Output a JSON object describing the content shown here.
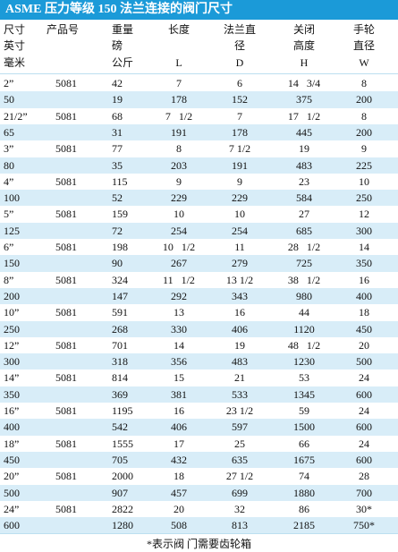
{
  "title": "ASME 压力等级 150 法兰连接的阀门尺寸",
  "header": [
    [
      "尺寸",
      "英寸",
      "毫米"
    ],
    [
      "产品号"
    ],
    [
      "重量",
      "磅",
      "公斤"
    ],
    [
      "长度",
      "L"
    ],
    [
      "法兰直",
      "径",
      "D"
    ],
    [
      "关闭",
      "高度",
      "H"
    ],
    [
      "手轮",
      "直径",
      "W"
    ]
  ],
  "rows": [
    [
      "2”",
      "5081",
      "42",
      "7",
      "6",
      "14   3/4",
      "8"
    ],
    [
      "50",
      null,
      "19",
      "178",
      "152",
      "375",
      "200"
    ],
    [
      "21/2”",
      "5081",
      "68",
      "7   1/2",
      "7",
      "17   1/2",
      "8"
    ],
    [
      "65",
      null,
      "31",
      "191",
      "178",
      "445",
      "200"
    ],
    [
      "3”",
      "5081",
      "77",
      "8",
      "7 1/2",
      "19",
      "9"
    ],
    [
      "80",
      null,
      "35",
      "203",
      "191",
      "483",
      "225"
    ],
    [
      "4”",
      "5081",
      "115",
      "9",
      "9",
      "23",
      "10"
    ],
    [
      "100",
      null,
      "52",
      "229",
      "229",
      "584",
      "250"
    ],
    [
      "5”",
      "5081",
      "159",
      "10",
      "10",
      "27",
      "12"
    ],
    [
      "125",
      null,
      "72",
      "254",
      "254",
      "685",
      "300"
    ],
    [
      "6”",
      "5081",
      "198",
      "10   1/2",
      "11",
      "28   1/2",
      "14"
    ],
    [
      "150",
      null,
      "90",
      "267",
      "279",
      "725",
      "350"
    ],
    [
      "8”",
      "5081",
      "324",
      "11   1/2",
      "13 1/2",
      "38   1/2",
      "16"
    ],
    [
      "200",
      null,
      "147",
      "292",
      "343",
      "980",
      "400"
    ],
    [
      "10”",
      "5081",
      "591",
      "13",
      "16",
      "44",
      "18"
    ],
    [
      "250",
      null,
      "268",
      "330",
      "406",
      "1120",
      "450"
    ],
    [
      "12”",
      "5081",
      "701",
      "14",
      "19",
      "48   1/2",
      "20"
    ],
    [
      "300",
      null,
      "318",
      "356",
      "483",
      "1230",
      "500"
    ],
    [
      "14”",
      "5081",
      "814",
      "15",
      "21",
      "53",
      "24"
    ],
    [
      "350",
      null,
      "369",
      "381",
      "533",
      "1345",
      "600"
    ],
    [
      "16”",
      "5081",
      "1195",
      "16",
      "23 1/2",
      "59",
      "24"
    ],
    [
      "400",
      null,
      "542",
      "406",
      "597",
      "1500",
      "600"
    ],
    [
      "18”",
      "5081",
      "1555",
      "17",
      "25",
      "66",
      "24"
    ],
    [
      "450",
      null,
      "705",
      "432",
      "635",
      "1675",
      "600"
    ],
    [
      "20”",
      "5081",
      "2000",
      "18",
      "27 1/2",
      "74",
      "28"
    ],
    [
      "500",
      null,
      "907",
      "457",
      "699",
      "1880",
      "700"
    ],
    [
      "24”",
      "5081",
      "2822",
      "20",
      "32",
      "86",
      "30*"
    ],
    [
      "600",
      null,
      "1280",
      "508",
      "813",
      "2185",
      "750*"
    ]
  ],
  "footnote": "*表示阀 门需要齿轮箱"
}
